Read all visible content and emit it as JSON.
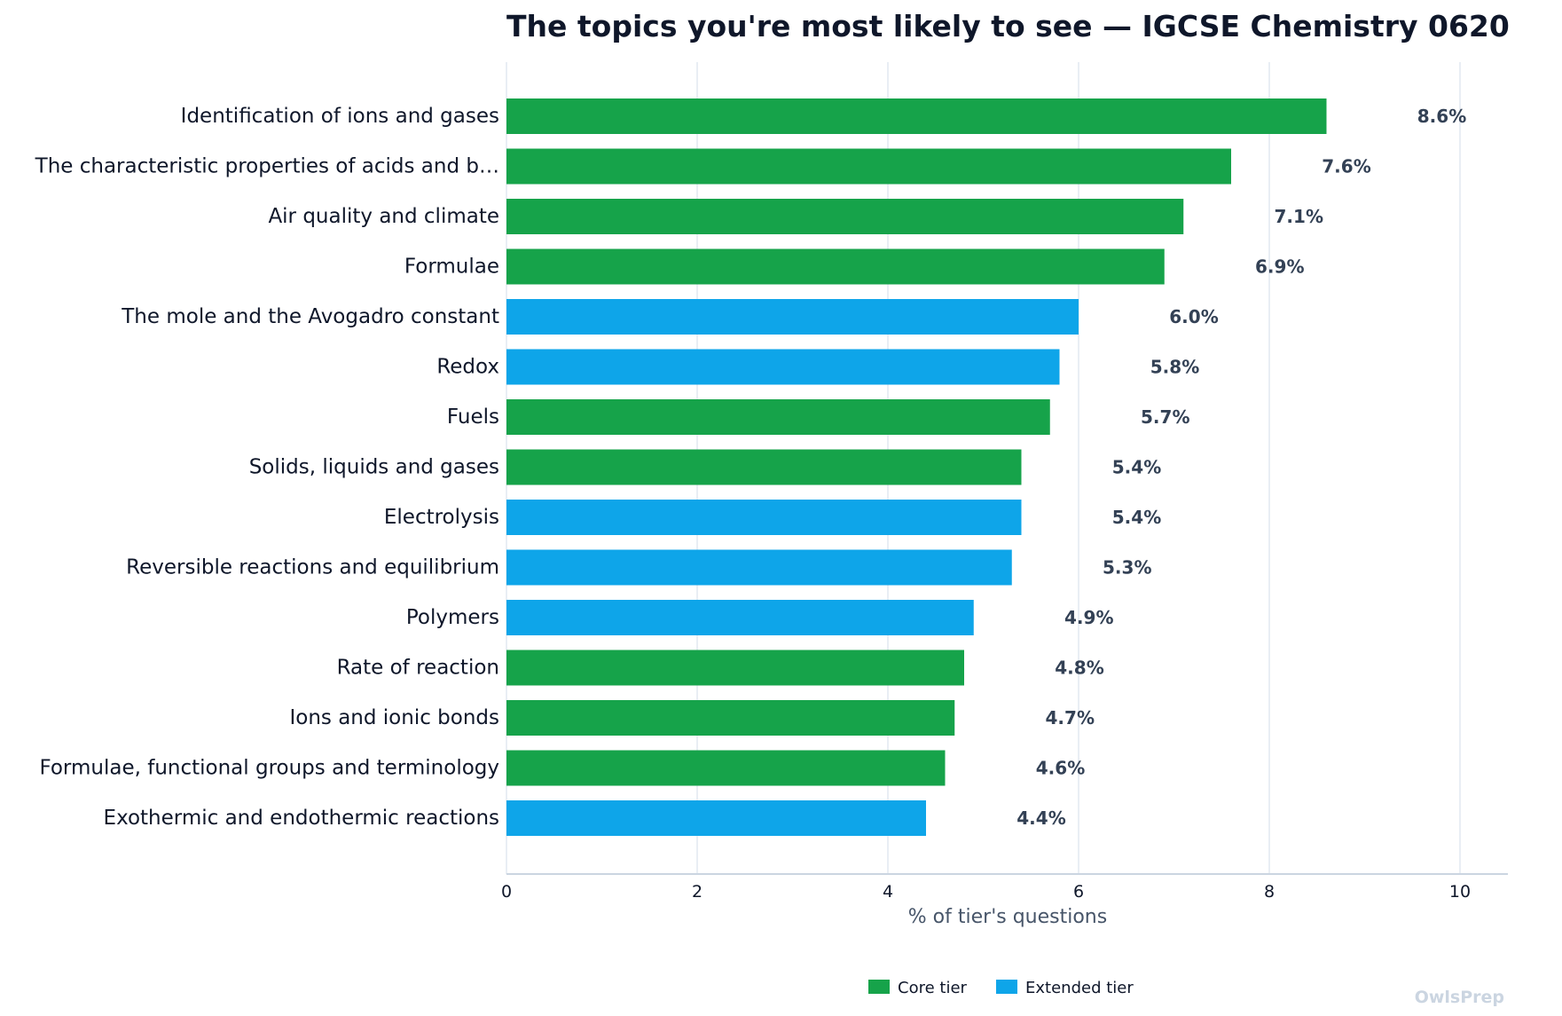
{
  "chart_data": {
    "type": "bar",
    "orientation": "horizontal",
    "title": "The topics you're most likely to see — IGCSE Chemistry 0620",
    "xlabel": "% of tier's questions",
    "ylabel": "",
    "xlim": [
      0,
      10.5
    ],
    "xticks": [
      0,
      2,
      4,
      6,
      8,
      10
    ],
    "grid": "vertical",
    "legend_position": "bottom-center",
    "categories": [
      "Identification of ions and gases",
      "The characteristic properties of acids and b…",
      "Air quality and climate",
      "Formulae",
      "The mole and the Avogadro constant",
      "Redox",
      "Fuels",
      "Solids, liquids and gases",
      "Electrolysis",
      "Reversible reactions and equilibrium",
      "Polymers",
      "Rate of reaction",
      "Ions and ionic bonds",
      "Formulae, functional groups and terminology",
      "Exothermic and endothermic reactions"
    ],
    "values": [
      8.6,
      7.6,
      7.1,
      6.9,
      6.0,
      5.8,
      5.7,
      5.4,
      5.4,
      5.3,
      4.9,
      4.8,
      4.7,
      4.6,
      4.4
    ],
    "value_labels": [
      "8.6%",
      "7.6%",
      "7.1%",
      "6.9%",
      "6.0%",
      "5.8%",
      "5.7%",
      "5.4%",
      "5.4%",
      "5.3%",
      "4.9%",
      "4.8%",
      "4.7%",
      "4.6%",
      "4.4%"
    ],
    "tiers": [
      "core",
      "core",
      "core",
      "core",
      "extended",
      "extended",
      "core",
      "core",
      "extended",
      "extended",
      "extended",
      "core",
      "core",
      "core",
      "extended"
    ],
    "legend": [
      {
        "key": "core",
        "label": "Core tier",
        "color": "#16a34a"
      },
      {
        "key": "extended",
        "label": "Extended tier",
        "color": "#0ea5e9"
      }
    ]
  },
  "watermark": "OwlsPrep",
  "colors": {
    "grid": "#e2e8f0",
    "axis": "#cbd5e1"
  }
}
